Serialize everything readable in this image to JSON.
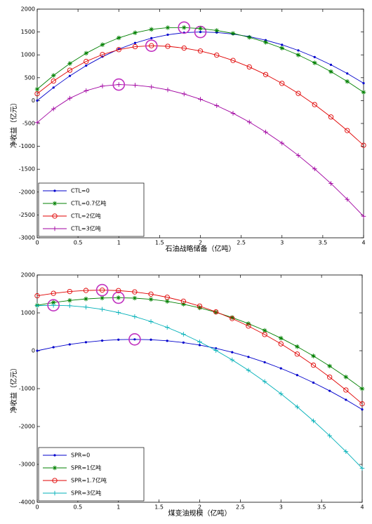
{
  "chart_data": [
    {
      "type": "line",
      "xlabel": "石油战略储备（亿吨）",
      "ylabel": "净收益（亿元）",
      "x": [
        0,
        0.2,
        0.4,
        0.6,
        0.8,
        1,
        1.2,
        1.4,
        1.6,
        1.8,
        2,
        2.2,
        2.4,
        2.6,
        2.8,
        3,
        3.2,
        3.4,
        3.6,
        3.8,
        4
      ],
      "xlim": [
        0,
        4
      ],
      "xticks": [
        0,
        0.5,
        1,
        1.5,
        2,
        2.5,
        3,
        3.5,
        4
      ],
      "ylim": [
        -3000,
        2000
      ],
      "yticks": [
        -3000,
        -2500,
        -2000,
        -1500,
        -1000,
        -500,
        0,
        500,
        1000,
        1500,
        2000
      ],
      "legend": "southwest",
      "optimum_marker_color": "#c030c0",
      "series": [
        {
          "name": "CTL=0",
          "color": "#0000cc",
          "marker": "dot",
          "values": [
            0,
            285,
            540,
            765,
            960,
            1125,
            1260,
            1365,
            1440,
            1485,
            1500,
            1489,
            1455,
            1399,
            1321,
            1220,
            1097,
            951,
            783,
            593,
            380
          ]
        },
        {
          "name": "CTL=0.7亿吨",
          "color": "#008000",
          "marker": "star",
          "values": [
            250,
            549,
            811,
            1035,
            1222,
            1371,
            1483,
            1558,
            1595,
            1597,
            1576,
            1533,
            1469,
            1383,
            1276,
            1147,
            997,
            825,
            633,
            418,
            182
          ]
        },
        {
          "name": "CTL=2亿吨",
          "color": "#e00000",
          "marker": "circle",
          "values": [
            150,
            428,
            664,
            857,
            1007,
            1114,
            1179,
            1200,
            1187,
            1148,
            1084,
            994,
            878,
            736,
            569,
            376,
            157,
            -88,
            -358,
            -655,
            -977
          ]
        },
        {
          "name": "CTL=3亿吨",
          "color": "#a000a0",
          "marker": "plus",
          "values": [
            -480,
            -181,
            51,
            217,
            317,
            350,
            337,
            299,
            235,
            145,
            30,
            -111,
            -277,
            -469,
            -687,
            -930,
            -1199,
            -1493,
            -1813,
            -2159,
            -2530
          ]
        }
      ]
    },
    {
      "type": "line",
      "xlabel": "煤变油规模（亿吨）",
      "ylabel": "净收益（亿元）",
      "x": [
        0,
        0.2,
        0.4,
        0.6,
        0.8,
        1,
        1.2,
        1.4,
        1.6,
        1.8,
        2,
        2.2,
        2.4,
        2.6,
        2.8,
        3,
        3.2,
        3.4,
        3.6,
        3.8,
        4
      ],
      "xlim": [
        0,
        4
      ],
      "xticks": [
        0,
        0.5,
        1,
        1.5,
        2,
        2.5,
        3,
        3.5,
        4
      ],
      "ylim": [
        -4000,
        2000
      ],
      "yticks": [
        -4000,
        -3000,
        -2000,
        -1000,
        0,
        1000,
        2000
      ],
      "legend": "southwest",
      "optimum_marker_color": "#c030c0",
      "series": [
        {
          "name": "SPR=0",
          "color": "#0000cc",
          "marker": "dot",
          "values": [
            0,
            92,
            167,
            225,
            267,
            292,
            300,
            291,
            262,
            215,
            149,
            64,
            -40,
            -163,
            -304,
            -465,
            -644,
            -842,
            -1059,
            -1295,
            -1550
          ]
        },
        {
          "name": "SPR=1亿吨",
          "color": "#008000",
          "marker": "star",
          "values": [
            1200,
            1272,
            1328,
            1368,
            1392,
            1400,
            1389,
            1357,
            1304,
            1229,
            1133,
            1016,
            877,
            716,
            535,
            332,
            108,
            -138,
            -405,
            -693,
            -1003
          ]
        },
        {
          "name": "SPR=1.7亿吨",
          "color": "#e00000",
          "marker": "circle",
          "values": [
            1450,
            1516,
            1563,
            1591,
            1600,
            1588,
            1553,
            1495,
            1412,
            1307,
            1178,
            1026,
            850,
            651,
            428,
            182,
            -88,
            -381,
            -697,
            -1037,
            -1400
          ]
        },
        {
          "name": "SPR=3亿吨",
          "color": "#00b0b8",
          "marker": "plus",
          "values": [
            1190,
            1200,
            1188,
            1152,
            1093,
            1009,
            902,
            771,
            616,
            437,
            234,
            8,
            -242,
            -516,
            -814,
            -1136,
            -1482,
            -1852,
            -2245,
            -2662,
            -3103
          ]
        }
      ]
    }
  ]
}
